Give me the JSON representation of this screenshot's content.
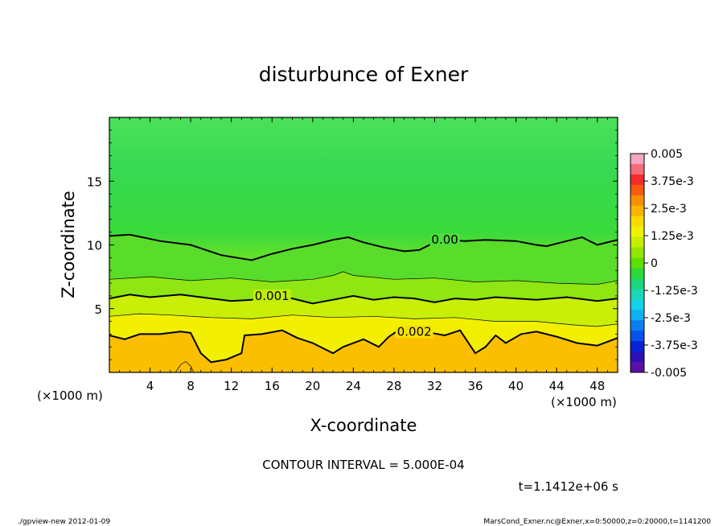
{
  "chart_data": {
    "type": "heatmap",
    "title": "disturbunce of Exner",
    "xlabel": "X-coordinate",
    "ylabel": "Z-coordinate",
    "x_unit": "(×1000 m)",
    "y_unit": "(×1000 m)",
    "xlim": [
      0,
      50
    ],
    "ylim": [
      0,
      20
    ],
    "x_ticks": [
      4,
      8,
      12,
      16,
      20,
      24,
      28,
      32,
      36,
      40,
      44,
      48
    ],
    "y_ticks": [
      5,
      10,
      15
    ],
    "colorbar": {
      "min": -0.005,
      "max": 0.005,
      "labels": [
        "0.005",
        "3.75e-3",
        "2.5e-3",
        "1.25e-3",
        "0",
        "-1.25e-3",
        "-2.5e-3",
        "-3.75e-3",
        "-0.005"
      ],
      "label_values": [
        0.005,
        0.00375,
        0.0025,
        0.00125,
        0,
        -0.00125,
        -0.0025,
        -0.00375,
        -0.005
      ]
    },
    "contours": [
      {
        "level": "0.00",
        "label_at": [
          33,
          10.4
        ],
        "points": [
          [
            0,
            10.7
          ],
          [
            2,
            10.8
          ],
          [
            5,
            10.3
          ],
          [
            8,
            10.0
          ],
          [
            11,
            9.2
          ],
          [
            14,
            8.8
          ],
          [
            16,
            9.3
          ],
          [
            18,
            9.7
          ],
          [
            20,
            10.0
          ],
          [
            22,
            10.4
          ],
          [
            23.5,
            10.6
          ],
          [
            25,
            10.2
          ],
          [
            27,
            9.8
          ],
          [
            29,
            9.5
          ],
          [
            30.5,
            9.6
          ],
          [
            32,
            10.2
          ],
          [
            33,
            10.4
          ],
          [
            35,
            10.3
          ],
          [
            37,
            10.4
          ],
          [
            40,
            10.3
          ],
          [
            42,
            10.0
          ],
          [
            43,
            9.9
          ],
          [
            45,
            10.3
          ],
          [
            46.5,
            10.6
          ],
          [
            48,
            10.0
          ],
          [
            50,
            10.4
          ]
        ]
      },
      {
        "level": "0.001",
        "label_at": [
          16,
          6.0
        ],
        "points": [
          [
            0,
            5.8
          ],
          [
            2,
            6.1
          ],
          [
            4,
            5.9
          ],
          [
            7,
            6.1
          ],
          [
            10,
            5.8
          ],
          [
            12,
            5.6
          ],
          [
            14,
            5.7
          ],
          [
            16,
            6.1
          ],
          [
            18,
            5.8
          ],
          [
            20,
            5.4
          ],
          [
            22,
            5.7
          ],
          [
            24,
            6.0
          ],
          [
            26,
            5.7
          ],
          [
            28,
            5.9
          ],
          [
            30,
            5.8
          ],
          [
            32,
            5.5
          ],
          [
            34,
            5.8
          ],
          [
            36,
            5.7
          ],
          [
            38,
            5.9
          ],
          [
            40,
            5.8
          ],
          [
            42,
            5.7
          ],
          [
            45,
            5.9
          ],
          [
            48,
            5.6
          ],
          [
            50,
            5.8
          ]
        ]
      },
      {
        "level": "0.002",
        "label_at": [
          30,
          3.2
        ],
        "points": [
          [
            0,
            2.9
          ],
          [
            1.5,
            2.6
          ],
          [
            3,
            3.0
          ],
          [
            5,
            3.0
          ],
          [
            7,
            3.2
          ],
          [
            8,
            3.1
          ],
          [
            9,
            1.5
          ],
          [
            10,
            0.8
          ],
          [
            11.5,
            1.0
          ],
          [
            13,
            1.5
          ],
          [
            13.3,
            2.9
          ],
          [
            15,
            3.0
          ],
          [
            17,
            3.3
          ],
          [
            18.5,
            2.7
          ],
          [
            20,
            2.3
          ],
          [
            22,
            1.5
          ],
          [
            23,
            2.0
          ],
          [
            25,
            2.6
          ],
          [
            26.5,
            2.0
          ],
          [
            27.5,
            2.8
          ],
          [
            29,
            3.6
          ],
          [
            31,
            3.2
          ],
          [
            33,
            2.9
          ],
          [
            34.5,
            3.3
          ],
          [
            36,
            1.5
          ],
          [
            37,
            2.0
          ],
          [
            38,
            2.9
          ],
          [
            39,
            2.3
          ],
          [
            40.5,
            3.0
          ],
          [
            42,
            3.2
          ],
          [
            44,
            2.8
          ],
          [
            46,
            2.3
          ],
          [
            48,
            2.1
          ],
          [
            50,
            2.7
          ]
        ]
      }
    ],
    "thin_contours": [
      {
        "level": "0.0005",
        "points": [
          [
            0,
            7.3
          ],
          [
            4,
            7.5
          ],
          [
            8,
            7.2
          ],
          [
            12,
            7.4
          ],
          [
            16,
            7.1
          ],
          [
            20,
            7.3
          ],
          [
            22,
            7.6
          ],
          [
            23,
            7.9
          ],
          [
            24,
            7.6
          ],
          [
            28,
            7.3
          ],
          [
            32,
            7.4
          ],
          [
            36,
            7.1
          ],
          [
            40,
            7.2
          ],
          [
            44,
            7.0
          ],
          [
            48,
            6.9
          ],
          [
            50,
            7.2
          ]
        ]
      },
      {
        "level": "0.0015",
        "points": [
          [
            0,
            4.4
          ],
          [
            3,
            4.6
          ],
          [
            6,
            4.5
          ],
          [
            10,
            4.3
          ],
          [
            14,
            4.2
          ],
          [
            18,
            4.5
          ],
          [
            22,
            4.3
          ],
          [
            26,
            4.4
          ],
          [
            30,
            4.2
          ],
          [
            34,
            4.3
          ],
          [
            38,
            4.0
          ],
          [
            42,
            4.0
          ],
          [
            46,
            3.7
          ],
          [
            48,
            3.6
          ],
          [
            50,
            3.8
          ]
        ]
      },
      {
        "level": "0.0025",
        "points": [
          [
            6.5,
            0
          ],
          [
            7,
            0.6
          ],
          [
            7.5,
            0.85
          ],
          [
            8,
            0.5
          ],
          [
            8.3,
            0
          ]
        ]
      }
    ],
    "contour_interval": "CONTOUR INTERVAL = 5.000E-04",
    "time_label": "t=1.1412e+06 s"
  },
  "footer": {
    "left": "./gpview-new  2012-01-09",
    "right": "MarsCond_Exner.nc@Exner,x=0:50000,z=0:20000,t=1141200"
  }
}
